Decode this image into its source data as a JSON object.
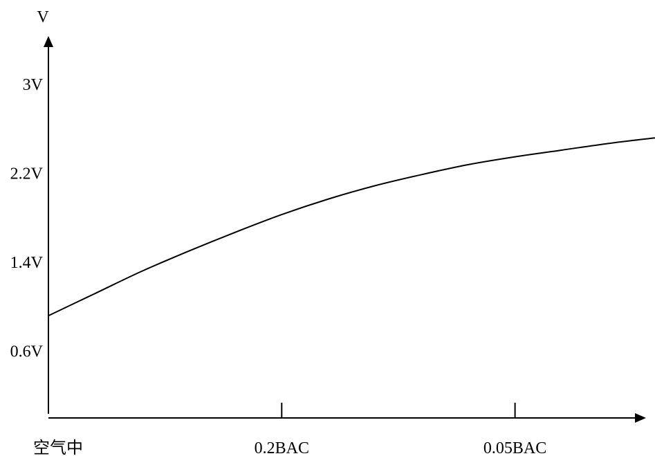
{
  "chart_data": {
    "type": "line",
    "ylabel": "V",
    "xlabel": "",
    "y_ticks": [
      "3V",
      "2.2V",
      "1.4V",
      "0.6V"
    ],
    "y_tick_values": [
      3.0,
      2.2,
      1.4,
      0.6
    ],
    "x_ticks": [
      "空气中",
      "0.2BAC",
      "0.05BAC"
    ],
    "x_tick_values": [
      0,
      1,
      2
    ],
    "xlim": [
      0,
      2.6
    ],
    "ylim": [
      0,
      3.35
    ],
    "grid": false,
    "series": [
      {
        "x": [
          0,
          0.2,
          0.4,
          0.6,
          0.8,
          1.0,
          1.2,
          1.4,
          1.6,
          1.8,
          2.0,
          2.2,
          2.4,
          2.6
        ],
        "y": [
          0.92,
          1.12,
          1.32,
          1.5,
          1.67,
          1.83,
          1.97,
          2.09,
          2.19,
          2.28,
          2.35,
          2.41,
          2.47,
          2.52
        ]
      }
    ]
  }
}
